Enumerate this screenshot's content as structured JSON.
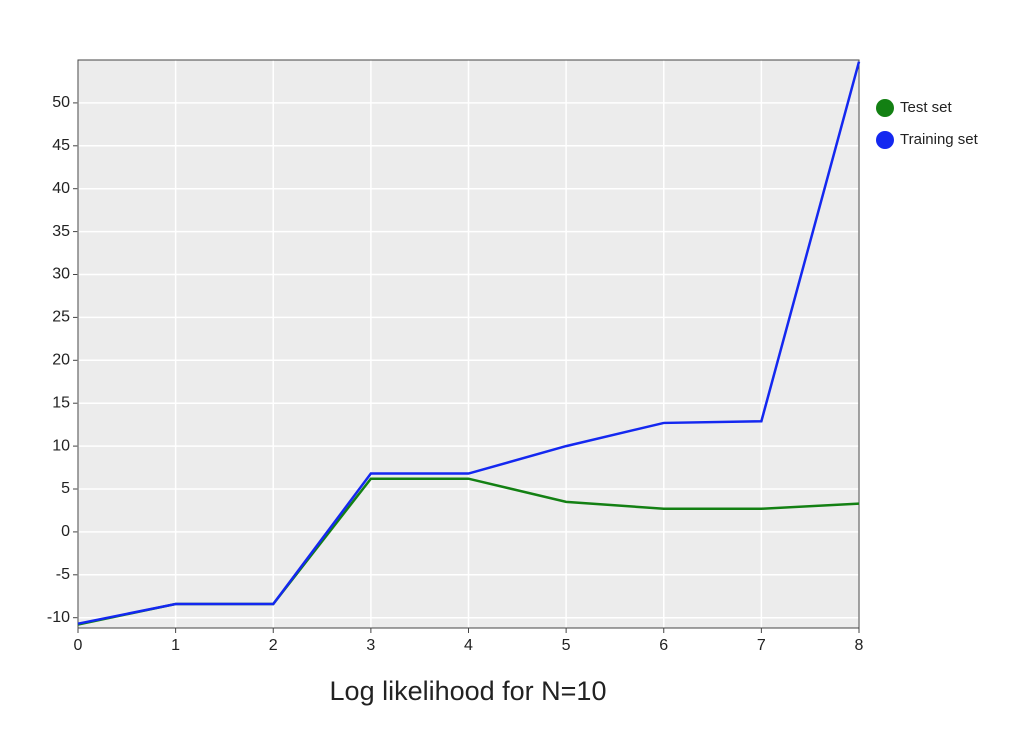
{
  "chart_data": {
    "type": "line",
    "title": "Log likelihood for N=10",
    "x": [
      0,
      1,
      2,
      3,
      4,
      5,
      6,
      7,
      8
    ],
    "series": [
      {
        "name": "Test set",
        "color": "#138013",
        "values": [
          -10.8,
          -8.4,
          -8.4,
          6.2,
          6.2,
          3.5,
          2.7,
          2.7,
          3.3
        ]
      },
      {
        "name": "Training set",
        "color": "#1428f0",
        "values": [
          -10.7,
          -8.4,
          -8.4,
          6.8,
          6.8,
          10.0,
          12.7,
          12.9,
          54.8
        ]
      }
    ],
    "xlim": [
      0,
      8
    ],
    "xticks": [
      0,
      1,
      2,
      3,
      4,
      5,
      6,
      7,
      8
    ],
    "ylim": [
      -11.2,
      55
    ],
    "yticks": [
      -10,
      -5,
      0,
      5,
      10,
      15,
      20,
      25,
      30,
      35,
      40,
      45,
      50
    ],
    "grid": true,
    "legend": "right"
  }
}
